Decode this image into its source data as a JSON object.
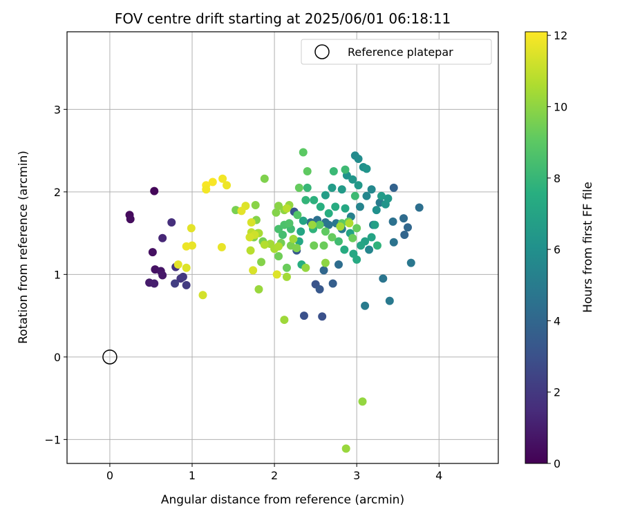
{
  "chart_data": {
    "type": "scatter",
    "title": "FOV centre drift starting at 2025/06/01 06:18:11",
    "xlabel": "Angular distance from reference (arcmin)",
    "ylabel": "Rotation from reference (arcmin)",
    "xlim": [
      -0.52,
      4.72
    ],
    "ylim": [
      -1.29,
      3.94
    ],
    "xticks": [
      0,
      1,
      2,
      3,
      4
    ],
    "xtick_labels": [
      "0",
      "1",
      "2",
      "3",
      "4"
    ],
    "yticks": [
      -1,
      0,
      1,
      2,
      3
    ],
    "ytick_labels": [
      "−1",
      "0",
      "1",
      "2",
      "3"
    ],
    "grid": true,
    "legend": {
      "position": "top-right",
      "entries": [
        "Reference platepar"
      ]
    },
    "colorbar": {
      "label": "Hours from first FF file",
      "colormap": "viridis",
      "range": [
        0,
        12.1
      ],
      "ticks": [
        "0",
        "2",
        "4",
        "6",
        "8",
        "10",
        "12"
      ]
    },
    "reference": {
      "x": 0,
      "y": 0,
      "name": "Reference platepar"
    },
    "points": [
      {
        "x": 0.54,
        "y": 2.01,
        "h": 0.2
      },
      {
        "x": 0.24,
        "y": 1.72,
        "h": 0.3
      },
      {
        "x": 0.25,
        "y": 1.67,
        "h": 0.4
      },
      {
        "x": 0.52,
        "y": 1.27,
        "h": 0.5
      },
      {
        "x": 0.55,
        "y": 1.06,
        "h": 0.6
      },
      {
        "x": 0.62,
        "y": 1.04,
        "h": 0.7
      },
      {
        "x": 0.64,
        "y": 0.99,
        "h": 0.8
      },
      {
        "x": 0.48,
        "y": 0.9,
        "h": 0.9
      },
      {
        "x": 0.54,
        "y": 0.89,
        "h": 1.0
      },
      {
        "x": 0.64,
        "y": 1.44,
        "h": 1.3
      },
      {
        "x": 0.75,
        "y": 1.63,
        "h": 1.6
      },
      {
        "x": 0.8,
        "y": 1.09,
        "h": 1.8
      },
      {
        "x": 0.86,
        "y": 0.95,
        "h": 1.9
      },
      {
        "x": 0.89,
        "y": 0.97,
        "h": 2.0
      },
      {
        "x": 0.93,
        "y": 0.87,
        "h": 2.1
      },
      {
        "x": 0.79,
        "y": 0.89,
        "h": 2.2
      },
      {
        "x": 2.36,
        "y": 0.5,
        "h": 3.0
      },
      {
        "x": 2.58,
        "y": 0.49,
        "h": 3.0
      },
      {
        "x": 2.5,
        "y": 0.88,
        "h": 3.1
      },
      {
        "x": 2.55,
        "y": 0.82,
        "h": 3.3
      },
      {
        "x": 2.71,
        "y": 0.89,
        "h": 3.6
      },
      {
        "x": 2.6,
        "y": 1.05,
        "h": 4.0
      },
      {
        "x": 2.78,
        "y": 1.12,
        "h": 4.3
      },
      {
        "x": 2.24,
        "y": 1.76,
        "h": 3.2
      },
      {
        "x": 2.27,
        "y": 1.29,
        "h": 3.4
      },
      {
        "x": 3.45,
        "y": 2.05,
        "h": 3.8
      },
      {
        "x": 3.58,
        "y": 1.48,
        "h": 3.9
      },
      {
        "x": 3.62,
        "y": 1.57,
        "h": 4.0
      },
      {
        "x": 3.57,
        "y": 1.68,
        "h": 4.2
      },
      {
        "x": 3.45,
        "y": 1.39,
        "h": 4.6
      },
      {
        "x": 3.66,
        "y": 1.14,
        "h": 4.8
      },
      {
        "x": 3.76,
        "y": 1.81,
        "h": 4.4
      },
      {
        "x": 3.32,
        "y": 0.95,
        "h": 4.7
      },
      {
        "x": 3.4,
        "y": 0.68,
        "h": 4.9
      },
      {
        "x": 3.1,
        "y": 0.62,
        "h": 5.0
      },
      {
        "x": 3.44,
        "y": 1.64,
        "h": 4.5
      },
      {
        "x": 3.28,
        "y": 1.87,
        "h": 5.0
      },
      {
        "x": 3.2,
        "y": 1.6,
        "h": 5.2
      },
      {
        "x": 3.15,
        "y": 1.3,
        "h": 5.5
      },
      {
        "x": 2.44,
        "y": 1.63,
        "h": 4.2
      },
      {
        "x": 2.52,
        "y": 1.66,
        "h": 4.5
      },
      {
        "x": 2.62,
        "y": 1.63,
        "h": 4.6
      },
      {
        "x": 2.66,
        "y": 1.6,
        "h": 4.7
      },
      {
        "x": 2.75,
        "y": 1.62,
        "h": 4.8
      },
      {
        "x": 2.82,
        "y": 1.55,
        "h": 5.0
      },
      {
        "x": 2.93,
        "y": 1.7,
        "h": 5.2
      },
      {
        "x": 3.04,
        "y": 1.82,
        "h": 5.4
      },
      {
        "x": 3.12,
        "y": 1.95,
        "h": 5.5
      },
      {
        "x": 3.18,
        "y": 2.03,
        "h": 5.6
      },
      {
        "x": 2.98,
        "y": 2.44,
        "h": 5.7
      },
      {
        "x": 3.02,
        "y": 2.4,
        "h": 5.8
      },
      {
        "x": 3.08,
        "y": 2.3,
        "h": 6.0
      },
      {
        "x": 3.12,
        "y": 2.28,
        "h": 6.2
      },
      {
        "x": 2.88,
        "y": 2.2,
        "h": 6.1
      },
      {
        "x": 2.95,
        "y": 2.15,
        "h": 6.3
      },
      {
        "x": 3.02,
        "y": 2.08,
        "h": 6.4
      },
      {
        "x": 2.82,
        "y": 2.03,
        "h": 6.5
      },
      {
        "x": 2.7,
        "y": 2.05,
        "h": 6.6
      },
      {
        "x": 2.62,
        "y": 1.96,
        "h": 6.7
      },
      {
        "x": 3.24,
        "y": 1.78,
        "h": 6.0
      },
      {
        "x": 3.35,
        "y": 1.85,
        "h": 6.2
      },
      {
        "x": 3.38,
        "y": 1.92,
        "h": 6.4
      },
      {
        "x": 3.3,
        "y": 1.95,
        "h": 6.6
      },
      {
        "x": 3.22,
        "y": 1.6,
        "h": 6.8
      },
      {
        "x": 3.18,
        "y": 1.45,
        "h": 7.0
      },
      {
        "x": 3.1,
        "y": 1.4,
        "h": 6.9
      },
      {
        "x": 3.05,
        "y": 1.35,
        "h": 7.1
      },
      {
        "x": 2.96,
        "y": 1.25,
        "h": 7.2
      },
      {
        "x": 3.0,
        "y": 1.18,
        "h": 7.3
      },
      {
        "x": 2.85,
        "y": 1.3,
        "h": 7.4
      },
      {
        "x": 2.92,
        "y": 1.5,
        "h": 7.0
      },
      {
        "x": 2.86,
        "y": 1.8,
        "h": 7.2
      },
      {
        "x": 2.74,
        "y": 1.82,
        "h": 7.4
      },
      {
        "x": 2.66,
        "y": 1.74,
        "h": 7.5
      },
      {
        "x": 2.56,
        "y": 1.82,
        "h": 7.6
      },
      {
        "x": 2.48,
        "y": 1.9,
        "h": 7.7
      },
      {
        "x": 2.35,
        "y": 1.65,
        "h": 7.0
      },
      {
        "x": 2.32,
        "y": 1.52,
        "h": 7.1
      },
      {
        "x": 2.3,
        "y": 1.4,
        "h": 7.2
      },
      {
        "x": 2.33,
        "y": 1.12,
        "h": 7.5
      },
      {
        "x": 2.47,
        "y": 1.55,
        "h": 7.8
      },
      {
        "x": 2.38,
        "y": 1.9,
        "h": 7.9
      },
      {
        "x": 2.4,
        "y": 2.05,
        "h": 8.0
      },
      {
        "x": 2.72,
        "y": 2.25,
        "h": 8.1
      },
      {
        "x": 2.86,
        "y": 2.27,
        "h": 8.2
      },
      {
        "x": 2.98,
        "y": 1.95,
        "h": 8.2
      },
      {
        "x": 2.78,
        "y": 1.4,
        "h": 8.3
      },
      {
        "x": 3.25,
        "y": 1.35,
        "h": 7.8
      },
      {
        "x": 2.2,
        "y": 1.55,
        "h": 8.3
      },
      {
        "x": 2.1,
        "y": 1.48,
        "h": 8.4
      },
      {
        "x": 2.05,
        "y": 1.55,
        "h": 8.5
      },
      {
        "x": 2.12,
        "y": 1.6,
        "h": 8.6
      },
      {
        "x": 2.18,
        "y": 1.62,
        "h": 8.7
      },
      {
        "x": 2.28,
        "y": 1.72,
        "h": 8.8
      },
      {
        "x": 2.35,
        "y": 2.48,
        "h": 9.0
      },
      {
        "x": 2.4,
        "y": 2.25,
        "h": 9.1
      },
      {
        "x": 2.3,
        "y": 2.05,
        "h": 9.2
      },
      {
        "x": 2.55,
        "y": 1.6,
        "h": 9.0
      },
      {
        "x": 2.62,
        "y": 1.52,
        "h": 9.1
      },
      {
        "x": 2.7,
        "y": 1.45,
        "h": 9.2
      },
      {
        "x": 2.6,
        "y": 1.35,
        "h": 9.3
      },
      {
        "x": 2.48,
        "y": 1.35,
        "h": 9.4
      },
      {
        "x": 2.82,
        "y": 1.62,
        "h": 9.0
      },
      {
        "x": 2.9,
        "y": 1.64,
        "h": 9.1
      },
      {
        "x": 3.0,
        "y": 1.56,
        "h": 9.2
      },
      {
        "x": 2.95,
        "y": 1.44,
        "h": 9.3
      },
      {
        "x": 2.15,
        "y": 1.08,
        "h": 9.3
      },
      {
        "x": 2.05,
        "y": 1.22,
        "h": 9.4
      },
      {
        "x": 2.08,
        "y": 1.38,
        "h": 9.5
      },
      {
        "x": 2.2,
        "y": 1.35,
        "h": 9.6
      },
      {
        "x": 2.27,
        "y": 1.32,
        "h": 9.7
      },
      {
        "x": 1.86,
        "y": 1.4,
        "h": 9.5
      },
      {
        "x": 1.8,
        "y": 1.5,
        "h": 9.6
      },
      {
        "x": 1.75,
        "y": 1.45,
        "h": 9.7
      },
      {
        "x": 1.78,
        "y": 1.66,
        "h": 9.8
      },
      {
        "x": 1.77,
        "y": 1.84,
        "h": 9.9
      },
      {
        "x": 1.53,
        "y": 1.78,
        "h": 9.6
      },
      {
        "x": 1.88,
        "y": 2.16,
        "h": 9.7
      },
      {
        "x": 2.02,
        "y": 1.75,
        "h": 9.8
      },
      {
        "x": 2.05,
        "y": 1.83,
        "h": 9.9
      },
      {
        "x": 2.12,
        "y": 1.78,
        "h": 10.0
      },
      {
        "x": 2.18,
        "y": 1.84,
        "h": 10.1
      },
      {
        "x": 1.84,
        "y": 1.15,
        "h": 9.8
      },
      {
        "x": 1.81,
        "y": 0.82,
        "h": 10.2
      },
      {
        "x": 2.15,
        "y": 0.97,
        "h": 10.4
      },
      {
        "x": 2.12,
        "y": 0.45,
        "h": 10.3
      },
      {
        "x": 3.07,
        "y": -0.54,
        "h": 10.1
      },
      {
        "x": 2.87,
        "y": -1.11,
        "h": 10.2
      },
      {
        "x": 2.62,
        "y": 1.14,
        "h": 10.0
      },
      {
        "x": 2.38,
        "y": 1.08,
        "h": 10.1
      },
      {
        "x": 2.23,
        "y": 1.43,
        "h": 10.3
      },
      {
        "x": 1.95,
        "y": 1.37,
        "h": 10.4
      },
      {
        "x": 2.0,
        "y": 1.31,
        "h": 10.5
      },
      {
        "x": 2.05,
        "y": 1.34,
        "h": 10.6
      },
      {
        "x": 1.88,
        "y": 1.36,
        "h": 10.7
      },
      {
        "x": 1.71,
        "y": 1.29,
        "h": 10.8
      },
      {
        "x": 1.72,
        "y": 1.51,
        "h": 10.9
      },
      {
        "x": 1.81,
        "y": 1.5,
        "h": 10.5
      },
      {
        "x": 2.46,
        "y": 1.6,
        "h": 10.2
      },
      {
        "x": 2.8,
        "y": 1.58,
        "h": 10.4
      },
      {
        "x": 2.91,
        "y": 1.62,
        "h": 10.6
      },
      {
        "x": 2.15,
        "y": 1.8,
        "h": 10.8
      },
      {
        "x": 1.76,
        "y": 1.48,
        "h": 11.2
      },
      {
        "x": 1.7,
        "y": 1.45,
        "h": 11.3
      },
      {
        "x": 1.72,
        "y": 1.63,
        "h": 11.4
      },
      {
        "x": 1.65,
        "y": 1.83,
        "h": 11.5
      },
      {
        "x": 1.6,
        "y": 1.77,
        "h": 11.6
      },
      {
        "x": 1.74,
        "y": 1.05,
        "h": 11.4
      },
      {
        "x": 1.36,
        "y": 1.33,
        "h": 11.7
      },
      {
        "x": 2.03,
        "y": 1.0,
        "h": 11.5
      },
      {
        "x": 1.42,
        "y": 2.08,
        "h": 11.8
      },
      {
        "x": 1.37,
        "y": 2.16,
        "h": 11.9
      },
      {
        "x": 1.25,
        "y": 2.12,
        "h": 12.0
      },
      {
        "x": 1.17,
        "y": 2.08,
        "h": 12.0
      },
      {
        "x": 1.17,
        "y": 2.03,
        "h": 11.9
      },
      {
        "x": 0.99,
        "y": 1.56,
        "h": 11.6
      },
      {
        "x": 1.0,
        "y": 1.35,
        "h": 11.7
      },
      {
        "x": 0.93,
        "y": 1.34,
        "h": 11.8
      },
      {
        "x": 0.93,
        "y": 1.08,
        "h": 11.5
      },
      {
        "x": 0.83,
        "y": 1.12,
        "h": 11.6
      },
      {
        "x": 1.13,
        "y": 0.75,
        "h": 11.3
      }
    ]
  }
}
